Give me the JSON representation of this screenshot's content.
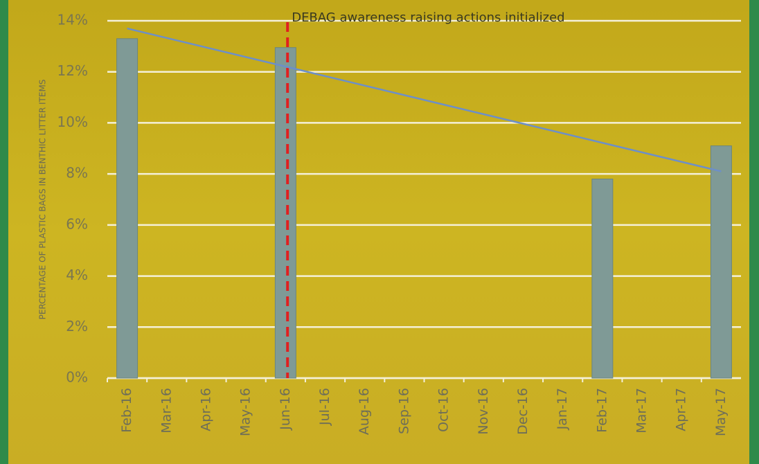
{
  "chart_data": {
    "type": "bar",
    "y_label": "PERCENTAGE OF PLASTIC BAGS IN BENTHIC LITTER ITEMS",
    "categories": [
      "Feb-16",
      "Mar-16",
      "Apr-16",
      "May-16",
      "Jun-16",
      "Jul-16",
      "Aug-16",
      "Sep-16",
      "Oct-16",
      "Nov-16",
      "Dec-16",
      "Jan-17",
      "Feb-17",
      "Mar-17",
      "Apr-17",
      "May-17"
    ],
    "values": [
      13.3,
      null,
      null,
      null,
      12.95,
      null,
      null,
      null,
      null,
      null,
      null,
      null,
      7.8,
      null,
      null,
      9.1
    ],
    "color": "#7f9a96",
    "trendline": [
      13.7,
      8.1
    ],
    "trendline_color": "#6d8fc8",
    "annotation": {
      "text": "DEBAG awareness raising actions initialized",
      "category_index": 4,
      "color": "#e02020"
    },
    "ylim": [
      0,
      14
    ],
    "yticks": [
      {
        "value": 0,
        "label": "0%"
      },
      {
        "value": 2,
        "label": "2%"
      },
      {
        "value": 4,
        "label": "4%"
      },
      {
        "value": 6,
        "label": "6%"
      },
      {
        "value": 8,
        "label": "8%"
      },
      {
        "value": 10,
        "label": "10%"
      },
      {
        "value": 12,
        "label": "12%"
      },
      {
        "value": 14,
        "label": "14%"
      }
    ],
    "grid": true
  }
}
